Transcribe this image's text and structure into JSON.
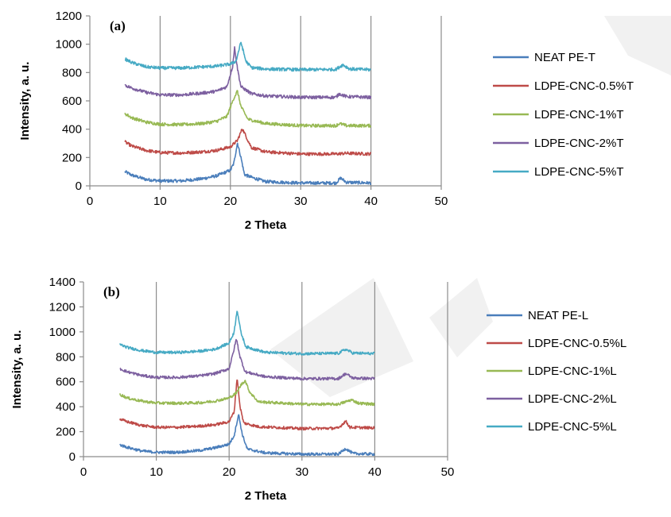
{
  "chart_data": [
    {
      "type": "line",
      "panel_label": "(a)",
      "xlabel": "2 Theta",
      "ylabel": "Intensity, a. u.",
      "xlim": [
        0,
        50
      ],
      "ylim": [
        0,
        1200
      ],
      "xticks": [
        0,
        10,
        20,
        30,
        40,
        50
      ],
      "yticks": [
        0,
        200,
        400,
        600,
        800,
        1000,
        1200
      ],
      "grid": "vertical",
      "legend": "right",
      "x_range": [
        5,
        40
      ],
      "series": [
        {
          "name": "NEAT PE-T",
          "color": "#4a7ebb",
          "offset": 0,
          "points": [
            [
              5,
              100
            ],
            [
              6,
              75
            ],
            [
              8,
              45
            ],
            [
              10,
              35
            ],
            [
              13,
              35
            ],
            [
              16,
              50
            ],
            [
              18,
              70
            ],
            [
              20,
              110
            ],
            [
              20.5,
              160
            ],
            [
              21,
              305
            ],
            [
              21.5,
              200
            ],
            [
              22,
              80
            ],
            [
              23,
              60
            ],
            [
              25,
              30
            ],
            [
              30,
              20
            ],
            [
              35,
              20
            ],
            [
              35.7,
              55
            ],
            [
              36.5,
              25
            ],
            [
              40,
              20
            ]
          ]
        },
        {
          "name": "LDPE-CNC-0.5%T",
          "color": "#be4b48",
          "offset": 0,
          "points": [
            [
              5,
              310
            ],
            [
              6,
              280
            ],
            [
              8,
              250
            ],
            [
              10,
              235
            ],
            [
              13,
              232
            ],
            [
              16,
              240
            ],
            [
              18,
              250
            ],
            [
              20,
              275
            ],
            [
              21,
              320
            ],
            [
              21.7,
              405
            ],
            [
              22.5,
              320
            ],
            [
              23,
              270
            ],
            [
              25,
              240
            ],
            [
              30,
              225
            ],
            [
              35,
              225
            ],
            [
              36.5,
              230
            ],
            [
              40,
              225
            ]
          ]
        },
        {
          "name": "LDPE-CNC-1%T",
          "color": "#98b954",
          "offset": 0,
          "points": [
            [
              5,
              510
            ],
            [
              6,
              480
            ],
            [
              8,
              450
            ],
            [
              10,
              435
            ],
            [
              13,
              432
            ],
            [
              16,
              440
            ],
            [
              18,
              455
            ],
            [
              19.5,
              490
            ],
            [
              20.5,
              620
            ],
            [
              21,
              670
            ],
            [
              21.5,
              560
            ],
            [
              22.5,
              470
            ],
            [
              25,
              440
            ],
            [
              30,
              425
            ],
            [
              35,
              425
            ],
            [
              35.5,
              440
            ],
            [
              36.5,
              425
            ],
            [
              40,
              425
            ]
          ]
        },
        {
          "name": "LDPE-CNC-2%T",
          "color": "#7d60a0",
          "offset": 0,
          "points": [
            [
              5,
              710
            ],
            [
              6,
              690
            ],
            [
              8,
              660
            ],
            [
              10,
              642
            ],
            [
              13,
              642
            ],
            [
              16,
              655
            ],
            [
              18,
              668
            ],
            [
              19.5,
              700
            ],
            [
              20.3,
              840
            ],
            [
              20.6,
              975
            ],
            [
              21,
              830
            ],
            [
              21.5,
              700
            ],
            [
              23,
              650
            ],
            [
              25,
              635
            ],
            [
              30,
              625
            ],
            [
              35,
              625
            ],
            [
              35.5,
              650
            ],
            [
              36.5,
              630
            ],
            [
              40,
              625
            ]
          ]
        },
        {
          "name": "LDPE-CNC-5%T",
          "color": "#46aac4",
          "offset": 0,
          "points": [
            [
              5,
              895
            ],
            [
              6,
              870
            ],
            [
              8,
              840
            ],
            [
              10,
              832
            ],
            [
              13,
              832
            ],
            [
              16,
              840
            ],
            [
              18,
              845
            ],
            [
              20,
              860
            ],
            [
              20.8,
              880
            ],
            [
              21.5,
              1015
            ],
            [
              22.2,
              880
            ],
            [
              23,
              835
            ],
            [
              25,
              825
            ],
            [
              30,
              820
            ],
            [
              35,
              822
            ],
            [
              36,
              855
            ],
            [
              37,
              825
            ],
            [
              40,
              820
            ]
          ]
        }
      ]
    },
    {
      "type": "line",
      "panel_label": "(b)",
      "xlabel": "2 Theta",
      "ylabel": "Intensity, a. u.",
      "xlim": [
        0,
        50
      ],
      "ylim": [
        0,
        1400
      ],
      "xticks": [
        0,
        10,
        20,
        30,
        40,
        50
      ],
      "yticks": [
        0,
        200,
        400,
        600,
        800,
        1000,
        1200,
        1400
      ],
      "grid": "vertical",
      "legend": "right",
      "x_range": [
        5,
        40
      ],
      "series": [
        {
          "name": "NEAT PE-L",
          "color": "#4a7ebb",
          "offset": 0,
          "points": [
            [
              5,
              95
            ],
            [
              6,
              75
            ],
            [
              8,
              45
            ],
            [
              10,
              35
            ],
            [
              13,
              35
            ],
            [
              16,
              50
            ],
            [
              18,
              70
            ],
            [
              20,
              100
            ],
            [
              20.7,
              170
            ],
            [
              21.3,
              340
            ],
            [
              21.8,
              180
            ],
            [
              22.5,
              60
            ],
            [
              25,
              30
            ],
            [
              30,
              20
            ],
            [
              35,
              20
            ],
            [
              36,
              65
            ],
            [
              37,
              25
            ],
            [
              40,
              20
            ]
          ]
        },
        {
          "name": "LDPE-CNC-0.5%L",
          "color": "#be4b48",
          "offset": 0,
          "points": [
            [
              5,
              300
            ],
            [
              6,
              280
            ],
            [
              8,
              250
            ],
            [
              10,
              235
            ],
            [
              13,
              235
            ],
            [
              16,
              245
            ],
            [
              18,
              255
            ],
            [
              20,
              280
            ],
            [
              20.7,
              360
            ],
            [
              21.1,
              635
            ],
            [
              21.5,
              400
            ],
            [
              22,
              270
            ],
            [
              24,
              240
            ],
            [
              30,
              225
            ],
            [
              35,
              228
            ],
            [
              36,
              285
            ],
            [
              36.6,
              235
            ],
            [
              40,
              230
            ]
          ]
        },
        {
          "name": "LDPE-CNC-1%L",
          "color": "#98b954",
          "offset": 0,
          "points": [
            [
              5,
              500
            ],
            [
              6,
              470
            ],
            [
              8,
              445
            ],
            [
              10,
              430
            ],
            [
              13,
              428
            ],
            [
              16,
              432
            ],
            [
              18,
              445
            ],
            [
              20,
              470
            ],
            [
              21,
              510
            ],
            [
              21.7,
              580
            ],
            [
              22.2,
              610
            ],
            [
              22.8,
              520
            ],
            [
              24,
              440
            ],
            [
              30,
              420
            ],
            [
              35,
              420
            ],
            [
              36.8,
              455
            ],
            [
              37.8,
              428
            ],
            [
              40,
              420
            ]
          ]
        },
        {
          "name": "LDPE-CNC-2%L",
          "color": "#7d60a0",
          "offset": 0,
          "points": [
            [
              5,
              705
            ],
            [
              6,
              680
            ],
            [
              8,
              650
            ],
            [
              10,
              635
            ],
            [
              13,
              635
            ],
            [
              16,
              648
            ],
            [
              18,
              665
            ],
            [
              20,
              705
            ],
            [
              20.6,
              840
            ],
            [
              21,
              945
            ],
            [
              21.5,
              800
            ],
            [
              22.2,
              680
            ],
            [
              25,
              640
            ],
            [
              30,
              625
            ],
            [
              35,
              625
            ],
            [
              36,
              665
            ],
            [
              37,
              630
            ],
            [
              40,
              625
            ]
          ]
        },
        {
          "name": "LDPE-CNC-5%L",
          "color": "#46aac4",
          "offset": 0,
          "points": [
            [
              5,
              900
            ],
            [
              6,
              875
            ],
            [
              8,
              850
            ],
            [
              10,
              835
            ],
            [
              13,
              835
            ],
            [
              16,
              845
            ],
            [
              18,
              860
            ],
            [
              20,
              910
            ],
            [
              20.7,
              1000
            ],
            [
              21.1,
              1180
            ],
            [
              21.6,
              1000
            ],
            [
              22.3,
              880
            ],
            [
              25,
              835
            ],
            [
              30,
              825
            ],
            [
              35,
              828
            ],
            [
              36,
              860
            ],
            [
              37,
              830
            ],
            [
              40,
              825
            ]
          ]
        }
      ]
    }
  ]
}
